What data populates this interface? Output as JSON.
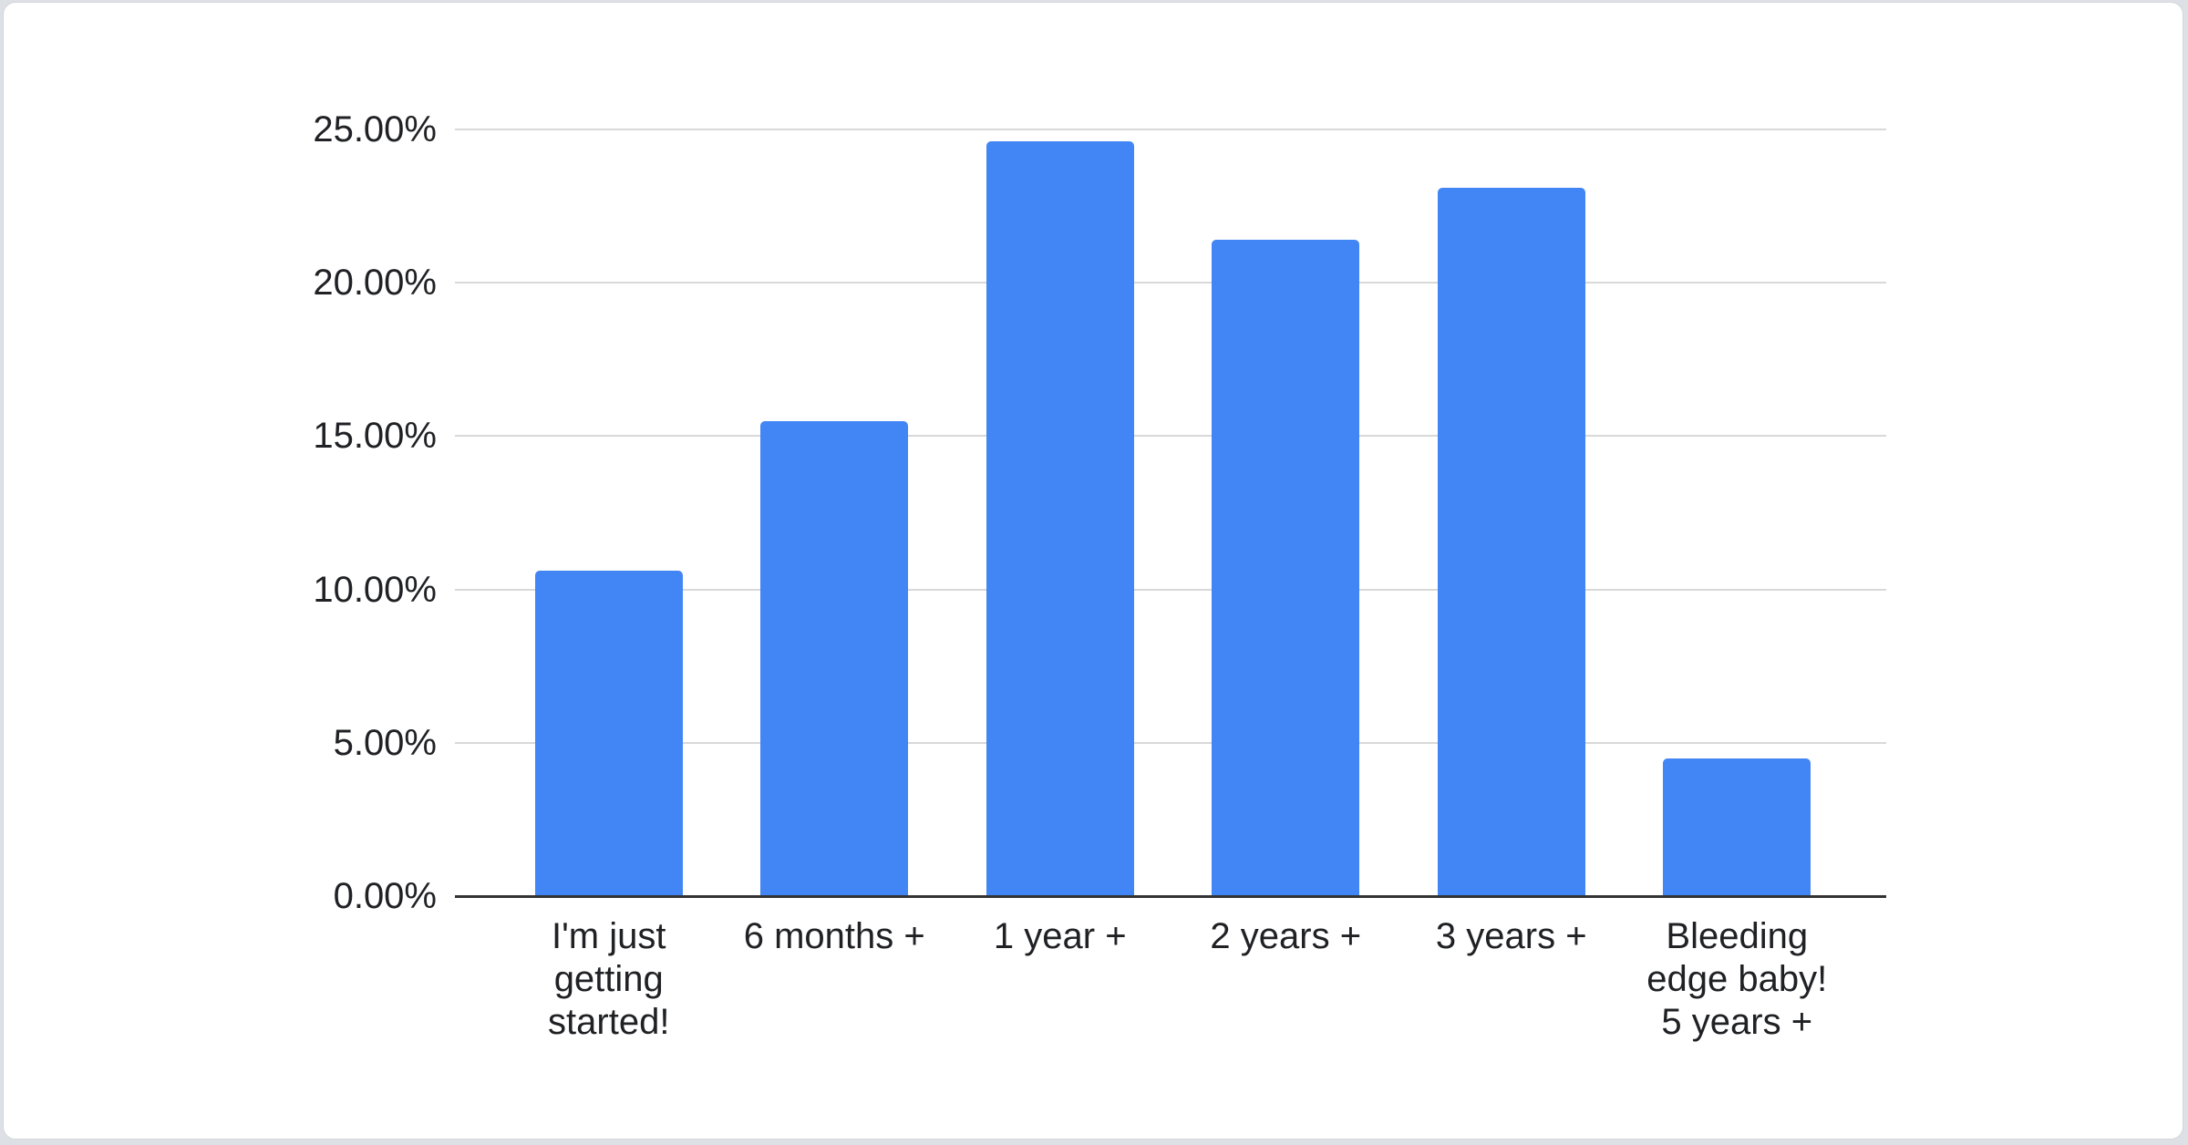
{
  "chart_data": {
    "type": "bar",
    "title": "",
    "categories": [
      "I'm just getting started!",
      "6 months +",
      "1 year +",
      "2 years +",
      "3 years +",
      "Bleeding edge baby! 5 years +"
    ],
    "tick_labels": [
      "I'm just\ngetting\nstarted!",
      "6 months +",
      "1 year +",
      "2 years +",
      "3 years +",
      "Bleeding\nedge baby!\n5 years +"
    ],
    "values": [
      10.6,
      15.5,
      24.6,
      21.4,
      23.1,
      4.5
    ],
    "value_unit": "%",
    "ylim": [
      0,
      25
    ],
    "ytick_step": 5,
    "ytick_labels": [
      "0.00%",
      "5.00%",
      "10.00%",
      "15.00%",
      "20.00%",
      "25.00%"
    ],
    "grid": true,
    "legend": "none",
    "bar_color": "#4285f4"
  },
  "colors": {
    "bar": "#4285f4",
    "gridline": "#d9d9d9",
    "axis_line": "#333333",
    "text": "#202124",
    "card_bg": "#ffffff",
    "page_bg": "#dde0e4"
  }
}
